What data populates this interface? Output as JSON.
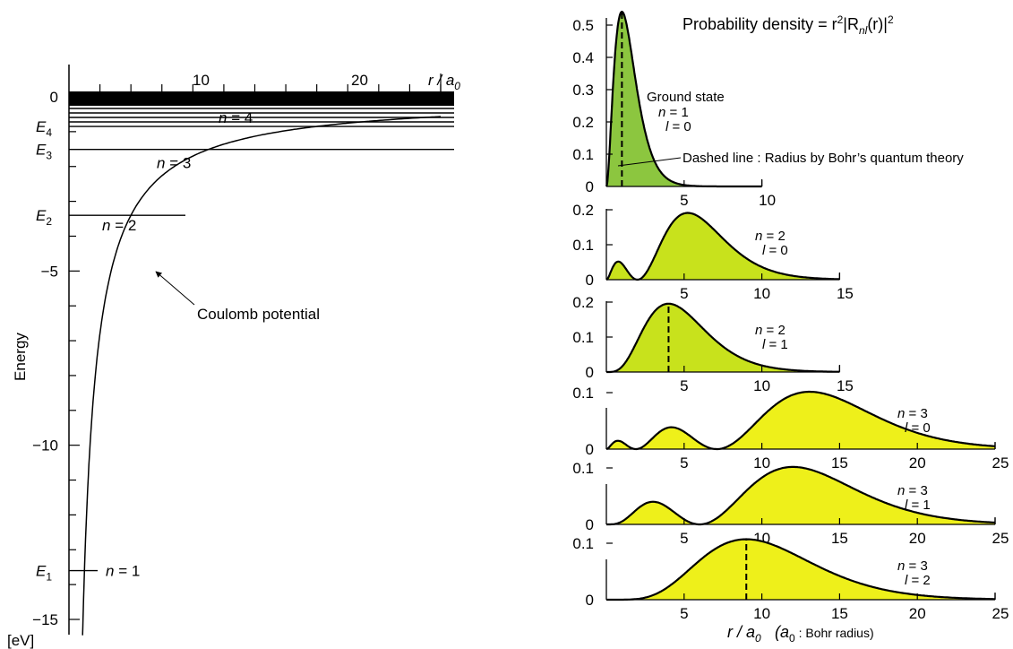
{
  "left_chart": {
    "ylabel": "Energy",
    "unit": "[eV]",
    "xaxis_unit_prefix": "r / a",
    "xaxis_unit_sub": "0",
    "x_ticks": [
      {
        "value": 10,
        "label": "10"
      },
      {
        "value": 20,
        "label": "20"
      }
    ],
    "y_ticks": [
      {
        "value": 0,
        "label": "0"
      },
      {
        "value": -5,
        "label": "−5"
      },
      {
        "value": -10,
        "label": "−10"
      },
      {
        "value": -15,
        "label": "−15"
      }
    ],
    "levels": [
      {
        "name": "E",
        "sub": "1",
        "n": 1,
        "energy": -13.6,
        "label": "n = 1"
      },
      {
        "name": "E",
        "sub": "2",
        "n": 2,
        "energy": -3.4,
        "label": "n = 2"
      },
      {
        "name": "E",
        "sub": "3",
        "n": 3,
        "energy": -1.51,
        "label": "n = 3"
      },
      {
        "name": "E",
        "sub": "4",
        "n": 4,
        "energy": -0.85,
        "label": "n = 4"
      }
    ],
    "curve_label": "Coulomb potential"
  },
  "right_charts": {
    "title_prefix": "Probability density  =  r",
    "title_suffix": "|R",
    "title_sub": "nl",
    "title_end": "(r)|",
    "xlabel_prefix": "r / a",
    "xlabel_sub": "0",
    "xlabel_note_prefix": "(a",
    "xlabel_note_sub": "0",
    "xlabel_note_text": " : Bohr radius)",
    "ground_state_label": "Ground state",
    "dashed_note": "Dashed line : Radius by Bohr’s quantum theory",
    "panels": [
      {
        "n": 1,
        "l": 0,
        "n_label": "n = 1",
        "l_label": "l = 0",
        "xmax": 10,
        "ymax": 0.5,
        "y_ticks": [
          "0",
          "0.1",
          "0.2",
          "0.3",
          "0.4",
          "0.5"
        ],
        "x_ticks": [
          "5",
          "10"
        ],
        "bohr_radius": 1,
        "color": "#8cc63f"
      },
      {
        "n": 2,
        "l": 0,
        "n_label": "n = 2",
        "l_label": "l = 0",
        "xmax": 15,
        "ymax": 0.2,
        "y_ticks": [
          "0",
          "0.1",
          "0.2"
        ],
        "x_ticks": [
          "5",
          "10",
          "15"
        ],
        "bohr_radius": null,
        "color": "#c8e21c"
      },
      {
        "n": 2,
        "l": 1,
        "n_label": "n = 2",
        "l_label": "l = 1",
        "xmax": 15,
        "ymax": 0.2,
        "y_ticks": [
          "0",
          "0.1",
          "0.2"
        ],
        "x_ticks": [
          "5",
          "10",
          "15"
        ],
        "bohr_radius": 4,
        "color": "#c8e21c"
      },
      {
        "n": 3,
        "l": 0,
        "n_label": "n = 3",
        "l_label": "l = 0",
        "xmax": 25,
        "ymax": 0.1,
        "y_ticks": [
          "0",
          "0.1"
        ],
        "x_ticks": [
          "5",
          "10",
          "15",
          "20",
          "25"
        ],
        "bohr_radius": null,
        "color": "#eef01a"
      },
      {
        "n": 3,
        "l": 1,
        "n_label": "n = 3",
        "l_label": "l = 1",
        "xmax": 25,
        "ymax": 0.1,
        "y_ticks": [
          "0",
          "0.1"
        ],
        "x_ticks": [
          "5",
          "10",
          "15",
          "20",
          "25"
        ],
        "bohr_radius": null,
        "color": "#eef01a"
      },
      {
        "n": 3,
        "l": 2,
        "n_label": "n = 3",
        "l_label": "l = 2",
        "xmax": 25,
        "ymax": 0.1,
        "y_ticks": [
          "0",
          "0.1"
        ],
        "x_ticks": [
          "5",
          "10",
          "15",
          "20",
          "25"
        ],
        "bohr_radius": 9,
        "color": "#eef01a"
      }
    ]
  },
  "chart_data": [
    {
      "type": "line",
      "title": "",
      "xlabel": "r / a0",
      "ylabel": "Energy",
      "unit": "eV",
      "xlim": [
        0,
        24
      ],
      "ylim": [
        -15,
        0
      ],
      "series": [
        {
          "name": "Coulomb potential",
          "formula": "E = -13.6 / r",
          "x": [
            1,
            2,
            4,
            9,
            16,
            24
          ],
          "y": [
            -13.6,
            -6.8,
            -3.4,
            -1.51,
            -0.85,
            -0.57
          ]
        }
      ],
      "levels": {
        "E1": -13.6,
        "E2": -3.4,
        "E3": -1.51,
        "E4": -0.85
      }
    },
    {
      "type": "area",
      "title": "Probability density = r^2|R_nl(r)|^2",
      "xlabel": "r / a0 (a0 : Bohr radius)",
      "series": [
        {
          "n": 1,
          "l": 0,
          "peak_x": 1,
          "peak_y": 0.54
        },
        {
          "n": 2,
          "l": 0,
          "peak_x": 5.2,
          "peak_y": 0.19
        },
        {
          "n": 2,
          "l": 1,
          "peak_x": 4,
          "peak_y": 0.19
        },
        {
          "n": 3,
          "l": 0,
          "peak_x": 13.1,
          "peak_y": 0.1
        },
        {
          "n": 3,
          "l": 1,
          "peak_x": 12,
          "peak_y": 0.1
        },
        {
          "n": 3,
          "l": 2,
          "peak_x": 9,
          "peak_y": 0.11
        }
      ]
    }
  ]
}
